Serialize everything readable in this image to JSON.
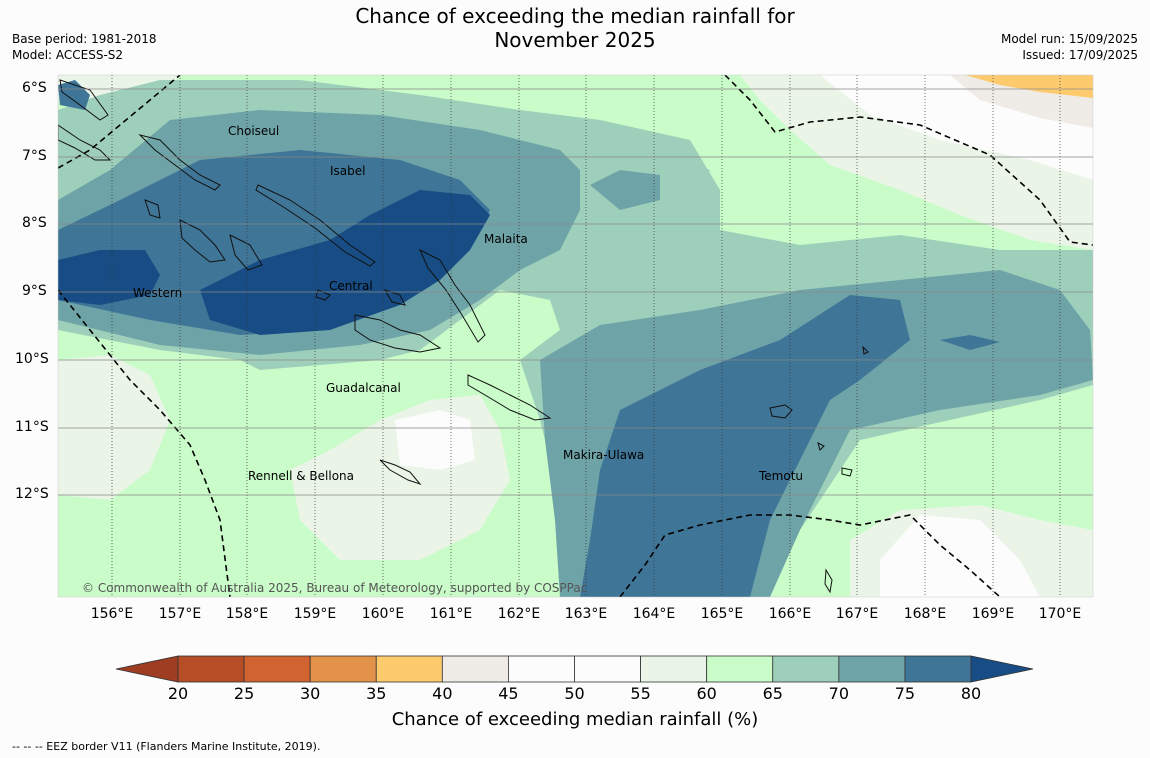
{
  "title_line1": "Chance of exceeding the median rainfall for",
  "title_line2": "November 2025",
  "base_period": "Base period: 1981-2018",
  "model": "Model: ACCESS-S2",
  "model_run": "Model run: 15/09/2025",
  "issued": "Issued: 17/09/2025",
  "copyright": "© Commonwealth of Australia 2025, Bureau of Meteorology, supported by COSPPac",
  "lon_labels": [
    "156°E",
    "157°E",
    "158°E",
    "159°E",
    "160°E",
    "161°E",
    "162°E",
    "163°E",
    "164°E",
    "165°E",
    "166°E",
    "167°E",
    "168°E",
    "169°E",
    "170°E"
  ],
  "lat_labels": [
    "6°S",
    "7°S",
    "8°S",
    "9°S",
    "10°S",
    "11°S",
    "12°S"
  ],
  "place_labels": {
    "choiseul": "Choiseul",
    "isabel": "Isabel",
    "malaita": "Malaita",
    "western": "Western",
    "central": "Central",
    "guadalcanal": "Guadalcanal",
    "makira": "Makira-Ulawa",
    "rennell": "Rennell & Bellona",
    "temotu": "Temotu"
  },
  "colorbar": {
    "title": "Chance of exceeding median rainfall (%)",
    "ticks": [
      "20",
      "25",
      "30",
      "35",
      "40",
      "45",
      "50",
      "55",
      "60",
      "65",
      "70",
      "75",
      "80"
    ],
    "colors": [
      "#9e3d22",
      "#b54d27",
      "#d0632f",
      "#e3924a",
      "#fdcb6e",
      "#efece8",
      "#fbfcfb",
      "#fbfcfb",
      "#eaf5e8",
      "#c9fcc8",
      "#9ecfba",
      "#6ea4a8",
      "#3f7596",
      "#174d84"
    ]
  },
  "eez_note": "--  --  -- EEZ border V11 (Flanders Marine Institute, 2019)."
}
